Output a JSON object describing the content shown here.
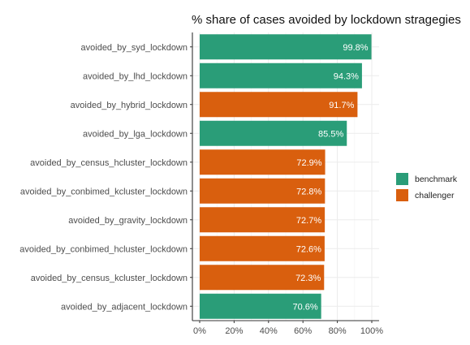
{
  "chart_data": {
    "type": "bar",
    "orientation": "horizontal",
    "title": "% share of cases avoided by lockdown stragegies",
    "xlabel": "",
    "ylabel": "",
    "xlim": [
      0,
      100
    ],
    "x_ticks": [
      "0%",
      "20%",
      "40%",
      "60%",
      "80%",
      "100%"
    ],
    "x_tick_values": [
      0,
      20,
      40,
      60,
      80,
      100
    ],
    "grid": true,
    "legend_position": "right",
    "categories": [
      "avoided_by_syd_lockdown",
      "avoided_by_lhd_lockdown",
      "avoided_by_hybrid_lockdown",
      "avoided_by_lga_lockdown",
      "avoided_by_census_hcluster_lockdown",
      "avoided_by_conbimed_kcluster_lockdown",
      "avoided_by_gravity_lockdown",
      "avoided_by_conbimed_hcluster_lockdown",
      "avoided_by_census_kcluster_lockdown",
      "avoided_by_adjacent_lockdown"
    ],
    "values": [
      99.8,
      94.3,
      91.7,
      85.5,
      72.9,
      72.8,
      72.7,
      72.6,
      72.3,
      70.6
    ],
    "labels": [
      "99.8%",
      "94.3%",
      "91.7%",
      "85.5%",
      "72.9%",
      "72.8%",
      "72.7%",
      "72.6%",
      "72.3%",
      "70.6%"
    ],
    "groups": [
      "benchmark",
      "benchmark",
      "challenger",
      "benchmark",
      "challenger",
      "challenger",
      "challenger",
      "challenger",
      "challenger",
      "benchmark"
    ],
    "legend": [
      {
        "name": "benchmark",
        "color": "#2a9d78"
      },
      {
        "name": "challenger",
        "color": "#d95f0e"
      }
    ]
  }
}
